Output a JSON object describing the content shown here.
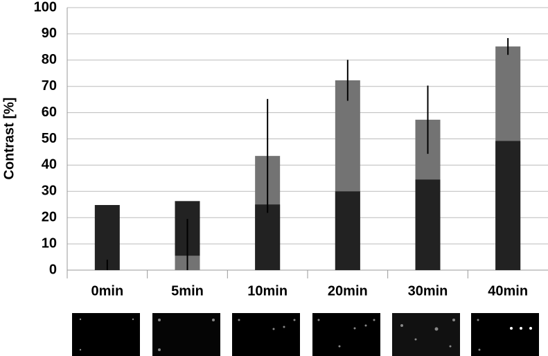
{
  "chart_data": {
    "type": "bar",
    "y_label": "Contrast [%]",
    "categories": [
      "0min",
      "5min",
      "10min",
      "20min",
      "30min",
      "40min"
    ],
    "series": [
      {
        "color": "#737373",
        "values": [
          0,
          5.5,
          43.5,
          72.3,
          57.3,
          85.2
        ],
        "errors": [
          4,
          14,
          21.7,
          7.8,
          13,
          3.2
        ]
      },
      {
        "color": "#222222",
        "values": [
          24.8,
          26.3,
          25,
          30,
          34.5,
          49.2
        ]
      }
    ],
    "ylim": [
      0,
      100
    ],
    "yticks": [
      0,
      10,
      20,
      30,
      40,
      50,
      60,
      70,
      80,
      90,
      100
    ],
    "grid": true
  }
}
